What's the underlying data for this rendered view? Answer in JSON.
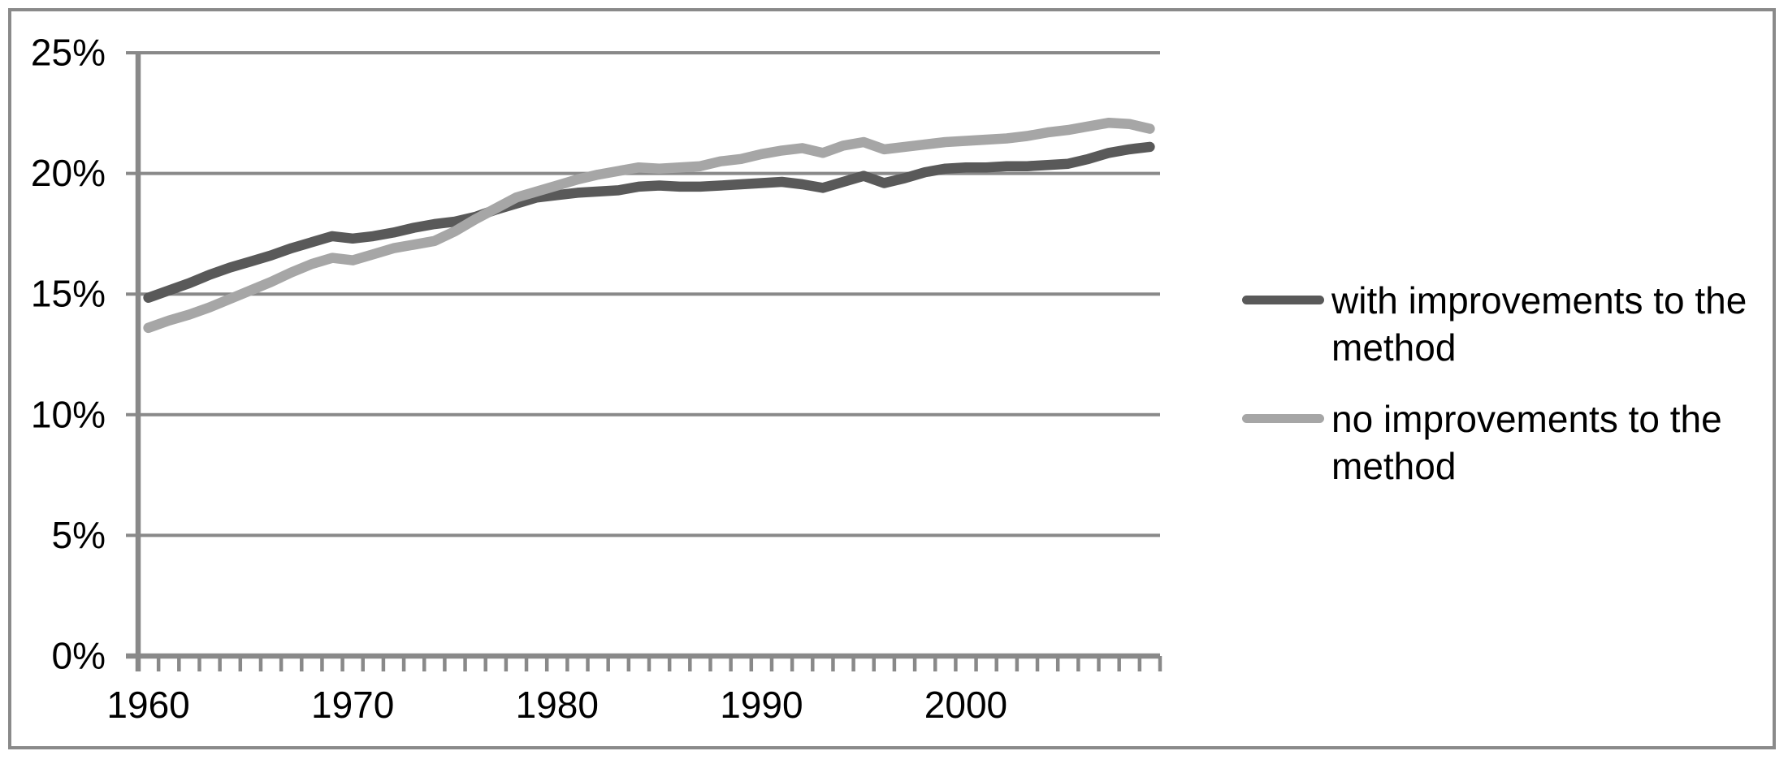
{
  "figure": {
    "background": "#FFFFFF",
    "border_color": "#8A8A8A"
  },
  "legend": {
    "items": [
      {
        "label": "with improvements to the method",
        "color": "#595959"
      },
      {
        "label": "no improvements to the method",
        "color": "#A6A6A6"
      }
    ]
  },
  "chart_data": {
    "type": "line",
    "title": "",
    "xlabel": "",
    "ylabel": "",
    "grid": true,
    "legend_position": "right",
    "ylim": [
      0,
      25
    ],
    "ytick_values": [
      0,
      5,
      10,
      15,
      20,
      25
    ],
    "ytick_labels": [
      "0%",
      "5%",
      "10%",
      "15%",
      "20%",
      "25%"
    ],
    "xtick_labeled_years": [
      1960,
      1970,
      1980,
      1990,
      2000
    ],
    "xtick_labels": [
      "1960",
      "1970",
      "1980",
      "1990",
      "2000"
    ],
    "x": [
      1960,
      1961,
      1962,
      1963,
      1964,
      1965,
      1966,
      1967,
      1968,
      1969,
      1970,
      1971,
      1972,
      1973,
      1974,
      1975,
      1976,
      1977,
      1978,
      1979,
      1980,
      1981,
      1982,
      1983,
      1984,
      1985,
      1986,
      1987,
      1988,
      1989,
      1990,
      1991,
      1992,
      1993,
      1994,
      1995,
      1996,
      1997,
      1998,
      1999,
      2000,
      2001,
      2002,
      2003,
      2004,
      2005,
      2006,
      2007,
      2008,
      2009
    ],
    "series": [
      {
        "name": "with improvements to the method",
        "color": "#595959",
        "values": [
          14.85,
          15.15,
          15.45,
          15.8,
          16.1,
          16.35,
          16.6,
          16.9,
          17.15,
          17.4,
          17.3,
          17.4,
          17.55,
          17.75,
          17.9,
          18.0,
          18.2,
          18.5,
          18.75,
          19.0,
          19.1,
          19.2,
          19.25,
          19.3,
          19.45,
          19.5,
          19.45,
          19.45,
          19.5,
          19.55,
          19.6,
          19.65,
          19.55,
          19.4,
          19.65,
          19.9,
          19.6,
          19.8,
          20.05,
          20.2,
          20.25,
          20.25,
          20.3,
          20.3,
          20.35,
          20.4,
          20.6,
          20.85,
          21.0,
          21.1
        ]
      },
      {
        "name": "no improvements to the method",
        "color": "#A6A6A6",
        "values": [
          13.6,
          13.9,
          14.15,
          14.45,
          14.8,
          15.15,
          15.5,
          15.9,
          16.25,
          16.5,
          16.4,
          16.65,
          16.9,
          17.05,
          17.2,
          17.6,
          18.1,
          18.55,
          19.0,
          19.25,
          19.5,
          19.75,
          19.95,
          20.1,
          20.25,
          20.2,
          20.25,
          20.3,
          20.5,
          20.6,
          20.8,
          20.95,
          21.05,
          20.85,
          21.15,
          21.3,
          21.0,
          21.1,
          21.2,
          21.3,
          21.35,
          21.4,
          21.45,
          21.55,
          21.7,
          21.8,
          21.95,
          22.1,
          22.05,
          21.85
        ]
      }
    ],
    "axis_color": "#898989",
    "text_color": "#000000"
  }
}
